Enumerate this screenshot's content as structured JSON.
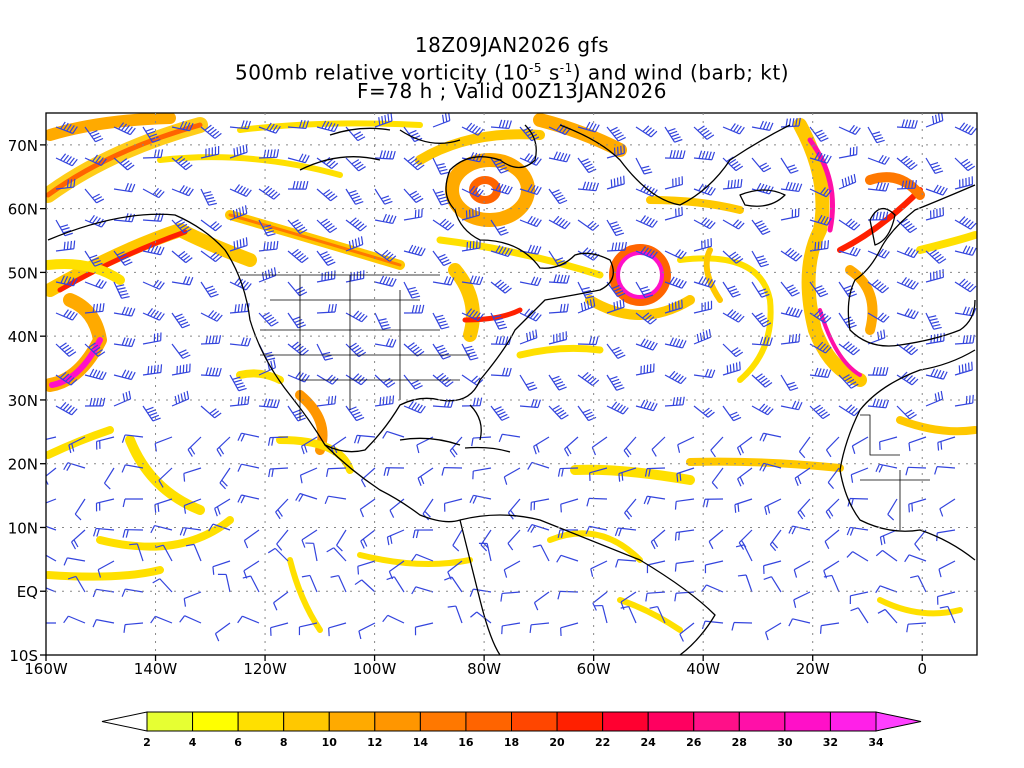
{
  "title": {
    "line1": "18Z09JAN2026 gfs",
    "line2_pre": "500mb relative vorticity (10",
    "line2_exp1": "-5",
    "line2_mid": " s",
    "line2_exp2": "-1",
    "line2_post": ") and wind (barb; kt)",
    "line3": "F=78 h ; Valid 00Z13JAN2026"
  },
  "map": {
    "lat_labels": [
      "70N",
      "60N",
      "50N",
      "40N",
      "30N",
      "20N",
      "10N",
      "EQ",
      "10S"
    ],
    "lat_values": [
      70,
      60,
      50,
      40,
      30,
      20,
      10,
      0,
      -10
    ],
    "lon_labels": [
      "160W",
      "140W",
      "120W",
      "100W",
      "80W",
      "60W",
      "40W",
      "20W",
      "0"
    ],
    "lon_values": [
      -160,
      -140,
      -120,
      -100,
      -80,
      -60,
      -40,
      -20,
      0
    ],
    "extent": {
      "lon_min": -160,
      "lon_max": 10,
      "lat_min": -10,
      "lat_max": 75
    },
    "barb_color": "#3344dd",
    "coast_color": "#000000"
  },
  "colorbar": {
    "labels": [
      "2",
      "4",
      "6",
      "8",
      "10",
      "12",
      "14",
      "16",
      "18",
      "20",
      "22",
      "24",
      "26",
      "28",
      "30",
      "32",
      "34"
    ],
    "colors": [
      "#e6ff33",
      "#ffff00",
      "#ffe000",
      "#ffc800",
      "#ffaa00",
      "#ff9600",
      "#ff7800",
      "#ff6400",
      "#ff4600",
      "#ff2000",
      "#ff0030",
      "#ff0060",
      "#ff1088",
      "#ff10a8",
      "#ff10c8",
      "#ff20e8"
    ],
    "under_color": "#ffffff",
    "over_color": "#ff40ff"
  }
}
